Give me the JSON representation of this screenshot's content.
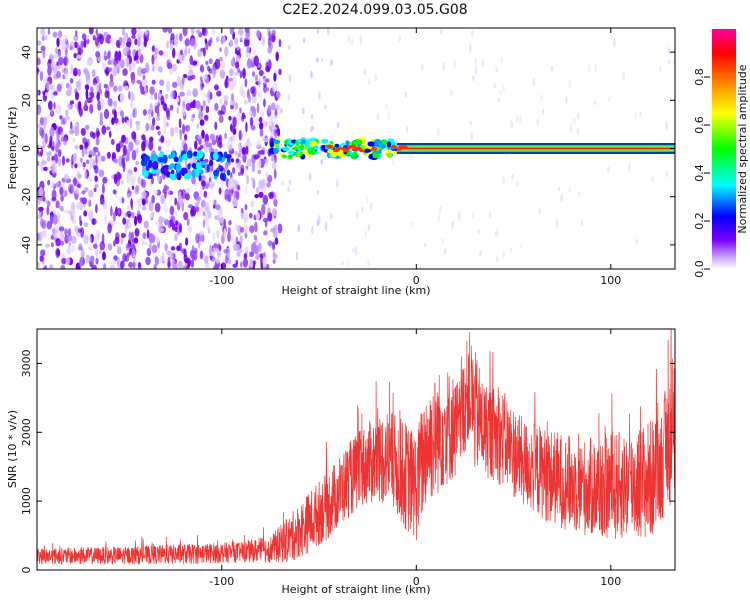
{
  "title": "C2E2.2024.099.03.05.G08",
  "chart_data": [
    {
      "type": "heatmap",
      "xlabel": "Height of straight line (km)",
      "ylabel": "Frequency (Hz)",
      "xlim": [
        -195,
        133
      ],
      "ylim": [
        -50,
        50
      ],
      "x_ticks": [
        -100,
        0,
        100
      ],
      "y_ticks": [
        -40,
        -20,
        0,
        20,
        40
      ],
      "colorbar": {
        "label": "Normalized spectral amplitude",
        "range": [
          0,
          1
        ],
        "ticks": [
          0.0,
          0.2,
          0.4,
          0.6,
          0.8
        ],
        "colors": [
          "#ffffff",
          "#c8a0ff",
          "#7a00ff",
          "#0000ff",
          "#00ffff",
          "#00ff00",
          "#ffff00",
          "#ff8000",
          "#ff0000",
          "#ff00a0"
        ]
      },
      "features": {
        "noise_region_x": [
          -195,
          -70
        ],
        "noise_amplitude": 0.15,
        "band_segments": [
          {
            "x": [
              -140,
              -95
            ],
            "center_hz": -7,
            "amplitude": 0.35
          },
          {
            "x": [
              -75,
              -10
            ],
            "center_hz": 0,
            "amplitude": 0.55
          },
          {
            "x": [
              -10,
              133
            ],
            "center_hz": 0,
            "amplitude": 0.9
          }
        ]
      }
    },
    {
      "type": "line",
      "xlabel": "Height of straight line (km)",
      "ylabel": "SNR (10 * v/v)",
      "xlim": [
        -195,
        133
      ],
      "ylim": [
        0,
        3500
      ],
      "x_ticks": [
        -100,
        0,
        100
      ],
      "y_ticks": [
        0,
        1000,
        2000,
        3000
      ],
      "series_color": "#ee3333",
      "envelope": {
        "x": [
          -195,
          -150,
          -120,
          -90,
          -75,
          -65,
          -55,
          -45,
          -35,
          -25,
          -15,
          -5,
          0,
          5,
          15,
          22,
          27,
          30,
          35,
          45,
          55,
          70,
          85,
          100,
          110,
          120,
          125,
          130,
          133
        ],
        "y_mean": [
          200,
          210,
          230,
          260,
          300,
          450,
          700,
          950,
          1300,
          1550,
          1650,
          1350,
          1200,
          1800,
          2100,
          2050,
          2700,
          2300,
          2050,
          1900,
          1550,
          1350,
          1200,
          1200,
          1250,
          1300,
          1450,
          1900,
          1900
        ],
        "y_spread": [
          120,
          130,
          150,
          150,
          200,
          350,
          450,
          500,
          550,
          600,
          700,
          800,
          800,
          900,
          900,
          700,
          800,
          900,
          700,
          700,
          650,
          700,
          700,
          800,
          800,
          900,
          800,
          1000,
          900
        ]
      }
    }
  ]
}
